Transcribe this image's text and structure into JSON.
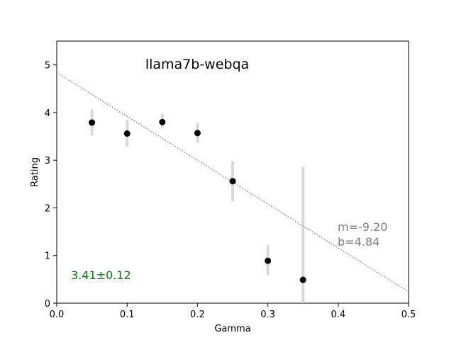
{
  "chart_data": {
    "type": "scatter",
    "title": "llama7b-webqa",
    "xlabel": "Gamma",
    "ylabel": "Rating",
    "xlim": [
      0,
      0.5
    ],
    "ylim": [
      0,
      5.5
    ],
    "xticks": [
      0.0,
      0.1,
      0.2,
      0.3,
      0.4,
      0.5
    ],
    "xtick_labels": [
      "0.0",
      "0.1",
      "0.2",
      "0.3",
      "0.4",
      "0.5"
    ],
    "yticks": [
      0,
      1,
      2,
      3,
      4,
      5
    ],
    "ytick_labels": [
      "0",
      "1",
      "2",
      "3",
      "4",
      "5"
    ],
    "grid": false,
    "points": [
      {
        "x": 0.05,
        "y": 3.79,
        "err_low": 3.52,
        "err_high": 4.07
      },
      {
        "x": 0.1,
        "y": 3.56,
        "err_low": 3.28,
        "err_high": 3.84
      },
      {
        "x": 0.15,
        "y": 3.8,
        "err_low": 3.68,
        "err_high": 3.98
      },
      {
        "x": 0.2,
        "y": 3.57,
        "err_low": 3.36,
        "err_high": 3.78
      },
      {
        "x": 0.25,
        "y": 2.56,
        "err_low": 2.13,
        "err_high": 2.98
      },
      {
        "x": 0.3,
        "y": 0.89,
        "err_low": 0.58,
        "err_high": 1.22
      },
      {
        "x": 0.35,
        "y": 0.49,
        "err_low": 0.0,
        "err_high": 2.86
      }
    ],
    "fit_line": {
      "m": -9.2,
      "b": 4.84
    },
    "annotations": {
      "slope_text": "m=-9.20",
      "intercept_text": "b=4.84",
      "score_text": "3.41±0.12"
    },
    "colors": {
      "points": "#000000",
      "errorbars": "#d9d9d9",
      "fit_line": "#808080",
      "score_text": "#008000",
      "fit_text": "#808080"
    }
  }
}
